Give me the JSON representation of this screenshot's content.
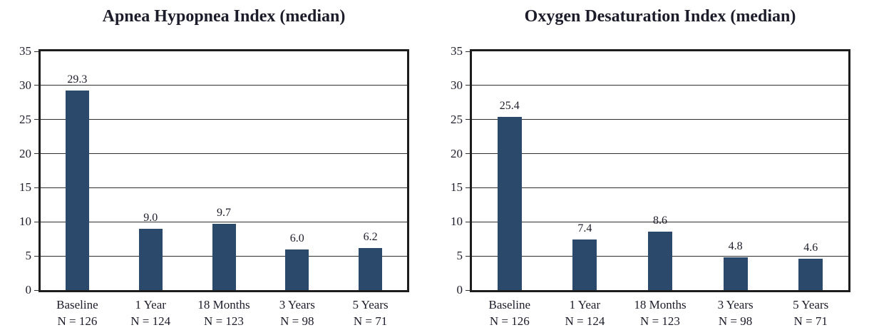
{
  "figure": {
    "background_color": "#ffffff",
    "bar_color": "#2a496b",
    "frame_color": "#1d1d1d",
    "gridline_color": "#2e2e2e",
    "text_color": "#1c1c2a"
  },
  "chart_data": [
    {
      "type": "bar",
      "title": "Apnea Hypopnea Index (median)",
      "categories": [
        "Baseline",
        "1 Year",
        "18 Months",
        "3 Years",
        "5 Years"
      ],
      "n_labels": [
        "N = 126",
        "N = 124",
        "N = 123",
        "N = 98",
        "N = 71"
      ],
      "values": [
        29.3,
        9.0,
        9.7,
        6.0,
        6.2
      ],
      "value_labels": [
        "29.3",
        "9.0",
        "9.7",
        "6.0",
        "6.2"
      ],
      "xlabel": "",
      "ylabel": "",
      "ylim": [
        0,
        35
      ],
      "ytick_step": 5,
      "grid": true,
      "legend": "none"
    },
    {
      "type": "bar",
      "title": "Oxygen Desaturation Index (median)",
      "categories": [
        "Baseline",
        "1 Year",
        "18 Months",
        "3 Years",
        "5 Years"
      ],
      "n_labels": [
        "N = 126",
        "N = 124",
        "N = 123",
        "N = 98",
        "N = 71"
      ],
      "values": [
        25.4,
        7.4,
        8.6,
        4.8,
        4.6
      ],
      "value_labels": [
        "25.4",
        "7.4",
        "8.6",
        "4.8",
        "4.6"
      ],
      "xlabel": "",
      "ylabel": "",
      "ylim": [
        0,
        35
      ],
      "ytick_step": 5,
      "grid": true,
      "legend": "none"
    }
  ]
}
